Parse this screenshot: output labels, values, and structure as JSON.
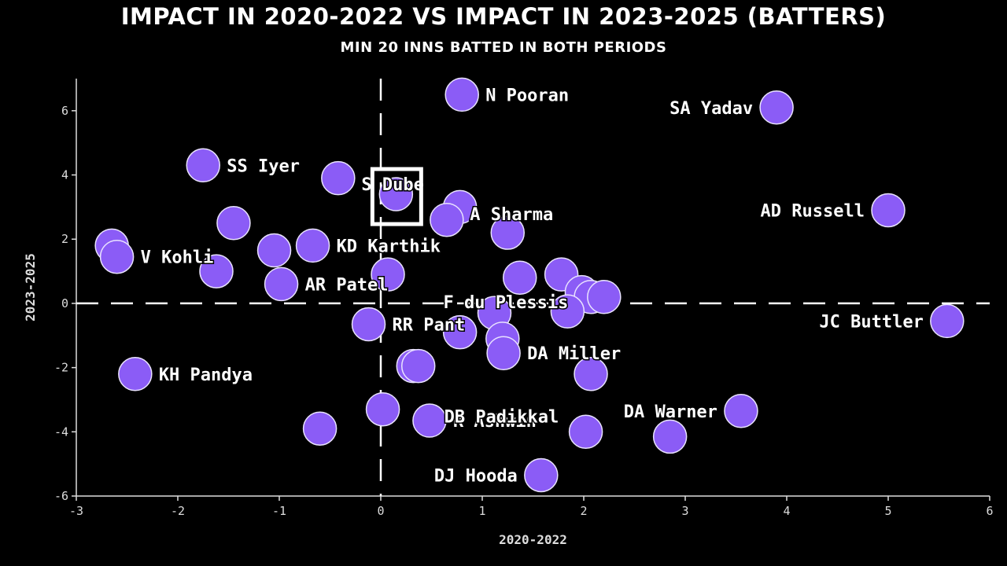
{
  "title": "IMPACT IN 2020-2022 VS  IMPACT IN 2023-2025 (BATTERS)",
  "subtitle": "MIN 20 INNS BATTED IN BOTH PERIODS",
  "colors": {
    "point": "#8b5cf6",
    "point_stroke": "#e9e2ff",
    "highlight_box": "#ffffff",
    "background": "#000000"
  },
  "chart_data": {
    "type": "scatter",
    "xlabel": "2020-2022",
    "ylabel": "2023-2025",
    "xlim": [
      -3,
      6
    ],
    "ylim": [
      -6,
      7
    ],
    "xticks": [
      -3,
      -2,
      -1,
      0,
      1,
      2,
      3,
      4,
      5,
      6
    ],
    "yticks": [
      -6,
      -4,
      -2,
      0,
      2,
      4,
      6
    ],
    "xtick_labels": [
      "-3",
      "-2",
      "-1",
      "0",
      "1",
      "2",
      "3",
      "4",
      "5",
      "6"
    ],
    "ytick_labels": [
      "-6",
      "-4",
      "-2",
      "0",
      "2",
      "4",
      "6"
    ],
    "reference_lines": {
      "x": 0,
      "y": 0,
      "style": "dashed"
    },
    "highlight": "S Dube",
    "points": [
      {
        "x": 0.8,
        "y": 6.5,
        "label": "N Pooran"
      },
      {
        "x": 3.9,
        "y": 6.1,
        "label": "SA Yadav"
      },
      {
        "x": -1.75,
        "y": 4.3,
        "label": "SS Iyer"
      },
      {
        "x": -0.42,
        "y": 3.9,
        "label": ""
      },
      {
        "x": 0.15,
        "y": 3.4,
        "label": "S Dube"
      },
      {
        "x": 0.78,
        "y": 3.0,
        "label": ""
      },
      {
        "x": 0.65,
        "y": 2.6,
        "label": ""
      },
      {
        "x": 1.25,
        "y": 2.2,
        "label": "A Sharma"
      },
      {
        "x": 5.0,
        "y": 2.9,
        "label": "AD Russell"
      },
      {
        "x": -1.45,
        "y": 2.5,
        "label": ""
      },
      {
        "x": -2.65,
        "y": 1.8,
        "label": ""
      },
      {
        "x": -2.6,
        "y": 1.45,
        "label": "V Kohli"
      },
      {
        "x": -1.05,
        "y": 1.65,
        "label": ""
      },
      {
        "x": -0.67,
        "y": 1.8,
        "label": "KD Karthik"
      },
      {
        "x": -1.62,
        "y": 1.0,
        "label": ""
      },
      {
        "x": -0.98,
        "y": 0.6,
        "label": "AR Patel"
      },
      {
        "x": 0.07,
        "y": 0.9,
        "label": ""
      },
      {
        "x": 1.37,
        "y": 0.8,
        "label": ""
      },
      {
        "x": 1.78,
        "y": 0.9,
        "label": ""
      },
      {
        "x": 1.98,
        "y": 0.35,
        "label": ""
      },
      {
        "x": 2.07,
        "y": 0.2,
        "label": ""
      },
      {
        "x": 2.2,
        "y": 0.2,
        "label": ""
      },
      {
        "x": 1.84,
        "y": -0.25,
        "label": ""
      },
      {
        "x": 1.12,
        "y": -0.3,
        "label": "F du Plessis"
      },
      {
        "x": -0.12,
        "y": -0.65,
        "label": "RR Pant"
      },
      {
        "x": 0.78,
        "y": -0.9,
        "label": ""
      },
      {
        "x": 1.2,
        "y": -1.1,
        "label": ""
      },
      {
        "x": 1.21,
        "y": -1.55,
        "label": "DA Miller"
      },
      {
        "x": 5.58,
        "y": -0.55,
        "label": "JC Buttler"
      },
      {
        "x": -2.42,
        "y": -2.2,
        "label": "KH Pandya"
      },
      {
        "x": 0.32,
        "y": -1.95,
        "label": ""
      },
      {
        "x": 0.37,
        "y": -1.95,
        "label": ""
      },
      {
        "x": 2.07,
        "y": -2.2,
        "label": ""
      },
      {
        "x": 0.02,
        "y": -3.3,
        "label": ""
      },
      {
        "x": 0.48,
        "y": -3.65,
        "label": "R Ashwin"
      },
      {
        "x": -0.6,
        "y": -3.9,
        "label": ""
      },
      {
        "x": 2.02,
        "y": -4.0,
        "label": "DB Padikkal"
      },
      {
        "x": 3.55,
        "y": -3.35,
        "label": "DA Warner"
      },
      {
        "x": 2.85,
        "y": -4.15,
        "label": ""
      },
      {
        "x": 1.58,
        "y": -5.35,
        "label": "DJ Hooda"
      }
    ]
  }
}
